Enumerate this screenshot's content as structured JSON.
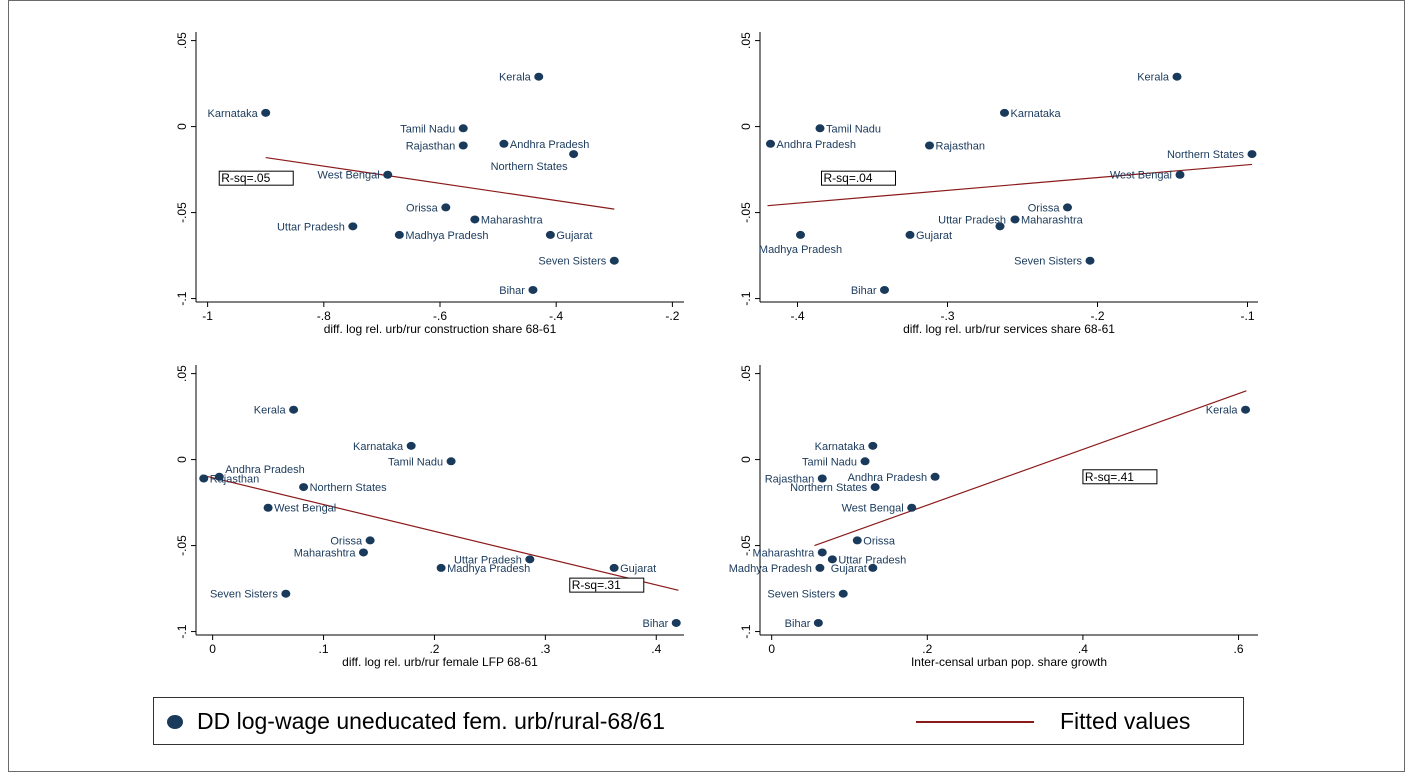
{
  "colors": {
    "points": "#1a3a5c",
    "fit": "#8b1a1a",
    "text": "#1a3a5c",
    "axis": "#000000"
  },
  "legend": {
    "points": "DD log-wage uneducated fem. urb/rural-68/61",
    "fit": "Fitted values"
  },
  "chart_data": [
    {
      "type": "scatter",
      "xlabel": "diff. log rel. urb/rur construction share 68-61",
      "xlim": [
        -1.02,
        -0.18
      ],
      "ylim": [
        -0.102,
        0.055
      ],
      "xticks": [
        -1,
        -0.8,
        -0.6,
        -0.4,
        -0.2
      ],
      "xtick_labels": [
        "-1",
        "-.8",
        "-.6",
        "-.4",
        "-.2"
      ],
      "yticks": [
        0.05,
        0,
        -0.05,
        -0.1
      ],
      "ytick_labels": [
        ".05",
        "0",
        "-.05",
        "-.1"
      ],
      "r_squared": "R-sq=.05",
      "r_squared_pos": [
        -0.98,
        -0.03
      ],
      "fit_line": [
        [
          -0.9,
          -0.018
        ],
        [
          -0.3,
          -0.048
        ]
      ],
      "points": [
        {
          "label": "Kerala",
          "x": -0.43,
          "y": 0.029,
          "side": "left"
        },
        {
          "label": "Karnataka",
          "x": -0.9,
          "y": 0.008,
          "side": "left"
        },
        {
          "label": "Tamil Nadu",
          "x": -0.56,
          "y": -0.001,
          "side": "left"
        },
        {
          "label": "Andhra Pradesh",
          "x": -0.49,
          "y": -0.01,
          "side": "right"
        },
        {
          "label": "Rajasthan",
          "x": -0.56,
          "y": -0.011,
          "side": "left"
        },
        {
          "label": "Northern States",
          "x": -0.37,
          "y": -0.016,
          "side": "leftbelow"
        },
        {
          "label": "West Bengal",
          "x": -0.69,
          "y": -0.028,
          "side": "left"
        },
        {
          "label": "Orissa",
          "x": -0.59,
          "y": -0.047,
          "side": "left"
        },
        {
          "label": "Maharashtra",
          "x": -0.54,
          "y": -0.054,
          "side": "right"
        },
        {
          "label": "Uttar Pradesh",
          "x": -0.75,
          "y": -0.058,
          "side": "left"
        },
        {
          "label": "Madhya Pradesh",
          "x": -0.67,
          "y": -0.063,
          "side": "right"
        },
        {
          "label": "Gujarat",
          "x": -0.41,
          "y": -0.063,
          "side": "right"
        },
        {
          "label": "Seven Sisters",
          "x": -0.3,
          "y": -0.078,
          "side": "left"
        },
        {
          "label": "Bihar",
          "x": -0.44,
          "y": -0.095,
          "side": "left"
        }
      ]
    },
    {
      "type": "scatter",
      "xlabel": "diff. log rel. urb/rur services share 68-61",
      "xlim": [
        -0.425,
        -0.093
      ],
      "ylim": [
        -0.102,
        0.055
      ],
      "xticks": [
        -0.4,
        -0.3,
        -0.2,
        -0.1
      ],
      "xtick_labels": [
        "-.4",
        "-.3",
        "-.2",
        "-.1"
      ],
      "yticks": [
        0.05,
        0,
        -0.05,
        -0.1
      ],
      "ytick_labels": [
        ".05",
        "0",
        "-.05",
        "-.1"
      ],
      "r_squared": "R-sq=.04",
      "r_squared_pos": [
        -0.384,
        -0.03
      ],
      "fit_line": [
        [
          -0.42,
          -0.046
        ],
        [
          -0.097,
          -0.022
        ]
      ],
      "points": [
        {
          "label": "Kerala",
          "x": -0.147,
          "y": 0.029,
          "side": "left"
        },
        {
          "label": "Karnataka",
          "x": -0.262,
          "y": 0.008,
          "side": "right"
        },
        {
          "label": "Tamil Nadu",
          "x": -0.385,
          "y": -0.001,
          "side": "right"
        },
        {
          "label": "Andhra Pradesh",
          "x": -0.418,
          "y": -0.01,
          "side": "right"
        },
        {
          "label": "Rajasthan",
          "x": -0.312,
          "y": -0.011,
          "side": "right"
        },
        {
          "label": "Northern States",
          "x": -0.097,
          "y": -0.016,
          "side": "left"
        },
        {
          "label": "West Bengal",
          "x": -0.145,
          "y": -0.028,
          "side": "left"
        },
        {
          "label": "Orissa",
          "x": -0.22,
          "y": -0.047,
          "side": "left"
        },
        {
          "label": "Maharashtra",
          "x": -0.255,
          "y": -0.054,
          "side": "right"
        },
        {
          "label": "Uttar Pradesh",
          "x": -0.265,
          "y": -0.058,
          "side": "leftabove"
        },
        {
          "label": "Gujarat",
          "x": -0.325,
          "y": -0.063,
          "side": "right"
        },
        {
          "label": "Madhya Pradesh",
          "x": -0.398,
          "y": -0.063,
          "side": "below"
        },
        {
          "label": "Seven Sisters",
          "x": -0.205,
          "y": -0.078,
          "side": "left"
        },
        {
          "label": "Bihar",
          "x": -0.342,
          "y": -0.095,
          "side": "left"
        }
      ]
    },
    {
      "type": "scatter",
      "xlabel": "diff. log rel. urb/rur female LFP 68-61",
      "xlim": [
        -0.015,
        0.425
      ],
      "ylim": [
        -0.102,
        0.055
      ],
      "xticks": [
        0,
        0.1,
        0.2,
        0.3,
        0.4
      ],
      "xtick_labels": [
        "0",
        ".1",
        ".2",
        ".3",
        ".4"
      ],
      "yticks": [
        0.05,
        0,
        -0.05,
        -0.1
      ],
      "ytick_labels": [
        ".05",
        "0",
        "-.05",
        "-.1"
      ],
      "r_squared": "R-sq=.31",
      "r_squared_pos": [
        0.322,
        -0.073
      ],
      "fit_line": [
        [
          -0.01,
          -0.009
        ],
        [
          0.42,
          -0.076
        ]
      ],
      "points": [
        {
          "label": "Kerala",
          "x": 0.073,
          "y": 0.029,
          "side": "left"
        },
        {
          "label": "Karnataka",
          "x": 0.179,
          "y": 0.008,
          "side": "left"
        },
        {
          "label": "Tamil Nadu",
          "x": 0.215,
          "y": -0.001,
          "side": "left"
        },
        {
          "label": "Andhra Pradesh",
          "x": 0.006,
          "y": -0.01,
          "side": "rightabove"
        },
        {
          "label": "Rajasthan",
          "x": -0.008,
          "y": -0.011,
          "side": "right"
        },
        {
          "label": "Northern States",
          "x": 0.082,
          "y": -0.016,
          "side": "right"
        },
        {
          "label": "West Bengal",
          "x": 0.05,
          "y": -0.028,
          "side": "right"
        },
        {
          "label": "Orissa",
          "x": 0.142,
          "y": -0.047,
          "side": "left"
        },
        {
          "label": "Maharashtra",
          "x": 0.136,
          "y": -0.054,
          "side": "left"
        },
        {
          "label": "Uttar Pradesh",
          "x": 0.286,
          "y": -0.058,
          "side": "left"
        },
        {
          "label": "Madhya Pradesh",
          "x": 0.206,
          "y": -0.063,
          "side": "right"
        },
        {
          "label": "Gujarat",
          "x": 0.362,
          "y": -0.063,
          "side": "right"
        },
        {
          "label": "Seven Sisters",
          "x": 0.066,
          "y": -0.078,
          "side": "left"
        },
        {
          "label": "Bihar",
          "x": 0.418,
          "y": -0.095,
          "side": "left"
        }
      ]
    },
    {
      "type": "scatter",
      "xlabel": "Inter-censal urban pop. share growth",
      "xlim": [
        -0.015,
        0.625
      ],
      "ylim": [
        -0.102,
        0.055
      ],
      "xticks": [
        0,
        0.2,
        0.4,
        0.6
      ],
      "xtick_labels": [
        "0",
        ".2",
        ".4",
        ".6"
      ],
      "yticks": [
        0.05,
        0,
        -0.05,
        -0.1
      ],
      "ytick_labels": [
        ".05",
        "0",
        "-.05",
        "-.1"
      ],
      "r_squared": "R-sq=.41",
      "r_squared_pos": [
        0.4,
        -0.01
      ],
      "fit_line": [
        [
          0.055,
          -0.05
        ],
        [
          0.61,
          0.04
        ]
      ],
      "points": [
        {
          "label": "Kerala",
          "x": 0.609,
          "y": 0.029,
          "side": "left"
        },
        {
          "label": "Karnataka",
          "x": 0.13,
          "y": 0.008,
          "side": "left"
        },
        {
          "label": "Tamil Nadu",
          "x": 0.12,
          "y": -0.001,
          "side": "left"
        },
        {
          "label": "Andhra Pradesh",
          "x": 0.21,
          "y": -0.01,
          "side": "left"
        },
        {
          "label": "Rajasthan",
          "x": 0.065,
          "y": -0.011,
          "side": "left"
        },
        {
          "label": "Northern States",
          "x": 0.133,
          "y": -0.016,
          "side": "left"
        },
        {
          "label": "West Bengal",
          "x": 0.18,
          "y": -0.028,
          "side": "left"
        },
        {
          "label": "Orissa",
          "x": 0.11,
          "y": -0.047,
          "side": "right"
        },
        {
          "label": "Maharashtra",
          "x": 0.065,
          "y": -0.054,
          "side": "left"
        },
        {
          "label": "Uttar Pradesh",
          "x": 0.078,
          "y": -0.058,
          "side": "right"
        },
        {
          "label": "Madhya Pradesh",
          "x": 0.062,
          "y": -0.063,
          "side": "left"
        },
        {
          "label": "Gujarat",
          "x": 0.13,
          "y": -0.063,
          "side": "leftin"
        },
        {
          "label": "Seven Sisters",
          "x": 0.092,
          "y": -0.078,
          "side": "left"
        },
        {
          "label": "Bihar",
          "x": 0.06,
          "y": -0.095,
          "side": "left"
        }
      ]
    }
  ]
}
